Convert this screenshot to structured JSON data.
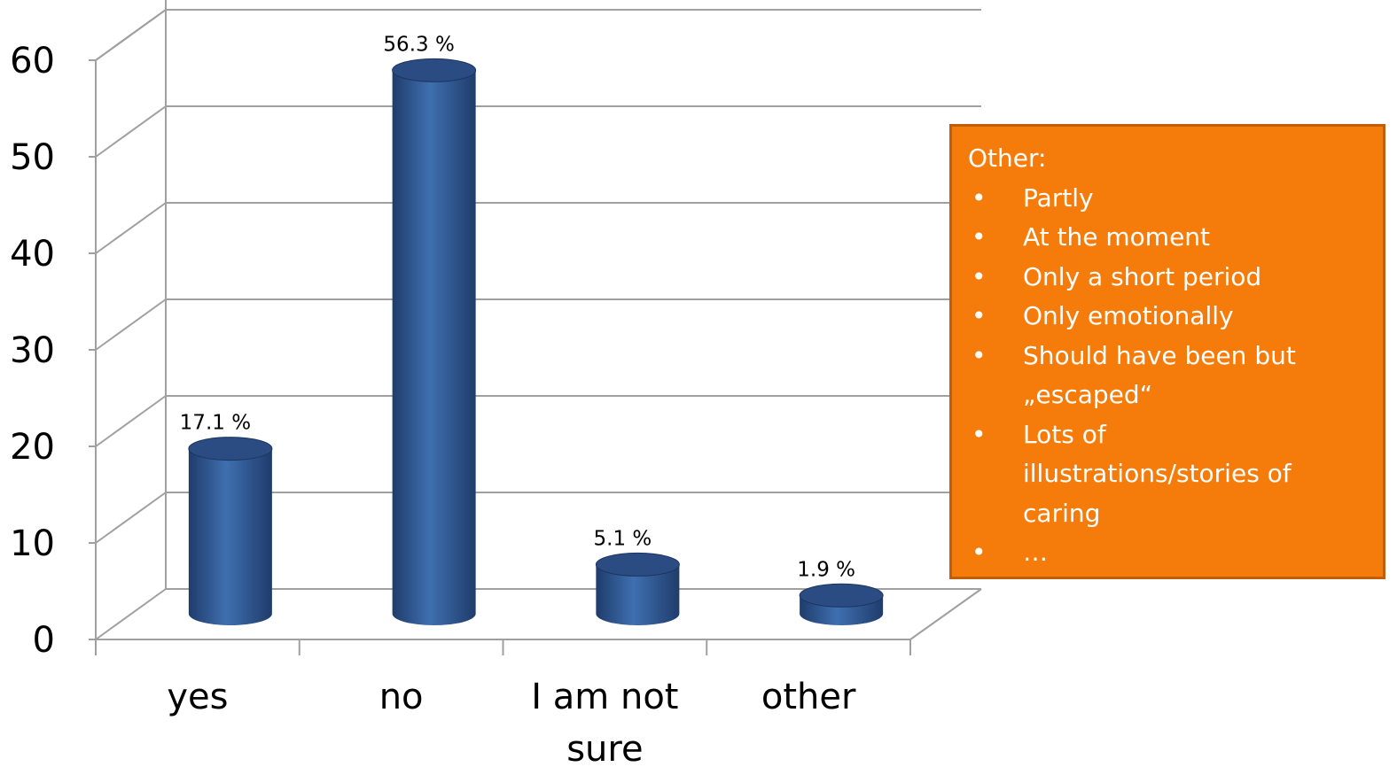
{
  "chart_data": {
    "type": "bar",
    "style": "3d-cylinder",
    "categories": [
      "yes",
      "no",
      "I am not sure",
      "other"
    ],
    "category_lines": [
      [
        "yes"
      ],
      [
        "no"
      ],
      [
        "I am not",
        "sure"
      ],
      [
        "other"
      ]
    ],
    "values": [
      17.1,
      56.3,
      5.1,
      1.9
    ],
    "data_labels": [
      "17.1 %",
      "56.3 %",
      "5.1 %",
      "1.9 %"
    ],
    "y_ticks": [
      0,
      10,
      20,
      30,
      40,
      50,
      60
    ],
    "ylim": [
      0,
      60
    ],
    "grid": true,
    "colors": {
      "bar": "#3d6aa8",
      "bar_dark": "#1f3c6b",
      "bar_top": "#2a4c82",
      "grid": "#a0a0a0"
    }
  },
  "callout": {
    "heading": "Other:",
    "items": [
      {
        "bullet": "•",
        "lines": [
          "Partly"
        ]
      },
      {
        "bullet": "•",
        "lines": [
          "At the moment"
        ]
      },
      {
        "bullet": "•",
        "lines": [
          "Only a short period"
        ]
      },
      {
        "bullet": "•",
        "lines": [
          "Only emotionally"
        ]
      },
      {
        "bullet": "•",
        "lines": [
          "Should have been but",
          "„escaped“"
        ]
      },
      {
        "bullet": "•",
        "lines": [
          "Lots of",
          "illustrations/stories of",
          "caring"
        ]
      },
      {
        "bullet": "•",
        "lines": [
          "…"
        ]
      }
    ],
    "colors": {
      "background": "#f57c0a",
      "border": "#c05e0a",
      "text": "#ffffff"
    }
  }
}
